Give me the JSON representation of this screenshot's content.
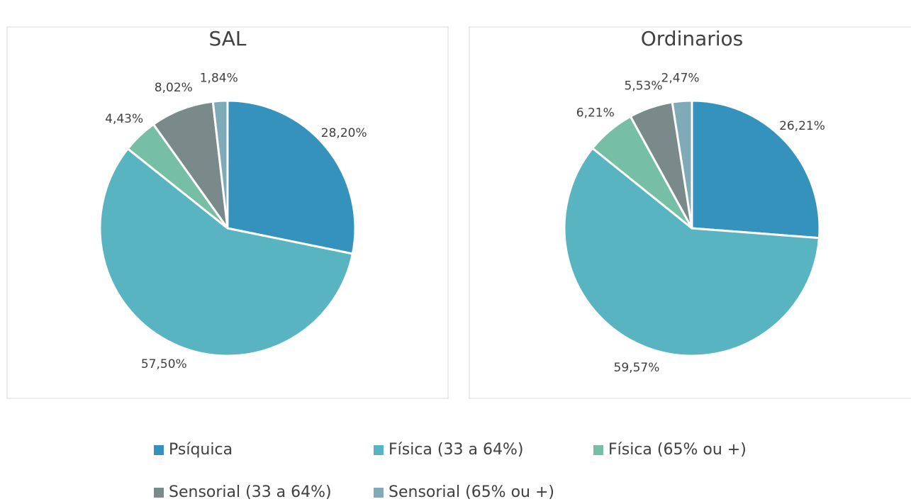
{
  "chart_data": [
    {
      "type": "pie",
      "title": "SAL",
      "categories": [
        "Psíquica",
        "Física (33 a 64%)",
        "Física (65% ou +)",
        "Sensorial (33 a 64%)",
        "Sensorial (65% ou +)"
      ],
      "colors": [
        "#3492bc",
        "#58b4c0",
        "#76bea6",
        "#7a8a8a",
        "#7fabb8"
      ],
      "values": [
        28.2,
        57.5,
        4.43,
        8.02,
        1.84
      ],
      "value_labels": [
        "28,20%",
        "57,50%",
        "4,43%",
        "8,02%",
        "1,84%"
      ]
    },
    {
      "type": "pie",
      "title": "Ordinarios",
      "values": [
        26.21,
        59.57,
        6.21,
        5.53,
        2.47
      ],
      "value_labels": [
        "26,21%",
        "59,57%",
        "6,21%",
        "5,53%",
        "2,47%"
      ]
    }
  ]
}
